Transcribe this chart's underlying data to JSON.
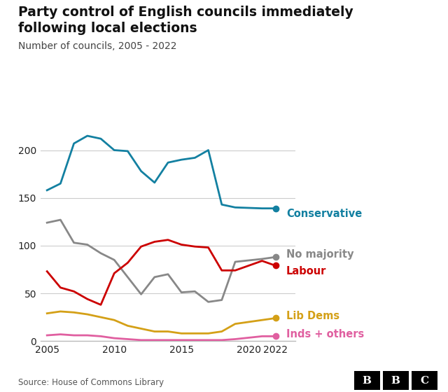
{
  "title_line1": "Party control of English councils immediately",
  "title_line2": "following local elections",
  "subtitle": "Number of councils, 2005 - 2022",
  "source": "Source: House of Commons Library",
  "years": [
    2005,
    2006,
    2007,
    2008,
    2009,
    2010,
    2011,
    2012,
    2013,
    2014,
    2015,
    2016,
    2017,
    2018,
    2019,
    2021,
    2022
  ],
  "conservative": [
    158,
    165,
    207,
    215,
    212,
    200,
    199,
    178,
    166,
    187,
    190,
    192,
    200,
    143,
    140,
    139,
    139
  ],
  "no_majority": [
    124,
    127,
    103,
    101,
    92,
    85,
    67,
    49,
    67,
    70,
    51,
    52,
    41,
    43,
    83,
    86,
    88
  ],
  "labour": [
    73,
    56,
    52,
    44,
    38,
    71,
    82,
    99,
    104,
    106,
    101,
    99,
    98,
    74,
    74,
    84,
    79
  ],
  "lib_dems": [
    29,
    31,
    30,
    28,
    25,
    22,
    16,
    13,
    10,
    10,
    8,
    8,
    8,
    10,
    18,
    22,
    24
  ],
  "inds_others": [
    6,
    7,
    6,
    6,
    5,
    3,
    2,
    1,
    1,
    1,
    1,
    1,
    1,
    1,
    2,
    5,
    5
  ],
  "colors": {
    "conservative": "#1380a1",
    "no_majority": "#888888",
    "labour": "#cc0000",
    "lib_dems": "#d4a017",
    "inds_others": "#e05fa0"
  },
  "ylim": [
    0,
    230
  ],
  "yticks": [
    0,
    50,
    100,
    150,
    200
  ],
  "xlim": [
    2004.5,
    2023.5
  ],
  "xtick_positions": [
    2005,
    2010,
    2015,
    2020,
    2022
  ],
  "xtick_labels": [
    "2005",
    "2010",
    "2015",
    "2020",
    "2022"
  ],
  "bg_color": "#ffffff",
  "grid_color": "#cccccc",
  "text_color": "#222222",
  "label_offsets": {
    "conservative": -6,
    "no_majority": 3,
    "labour": -6,
    "lib_dems": 2,
    "inds_others": 2
  }
}
